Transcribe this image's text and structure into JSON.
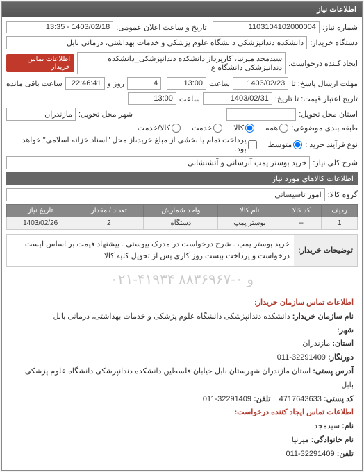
{
  "panel_title": "اطلاعات نیاز",
  "top": {
    "req_no_label": "شماره نیاز:",
    "req_no": "1103104102000004",
    "ann_time_label": "تاریخ و ساعت اعلان عمومی:",
    "ann_time": "1403/02/18 - 13:35",
    "buyer_label": "دستگاه خریدار:",
    "buyer": "دانشکده دندانپزشکی دانشگاه علوم پزشکی و خدمات بهداشتی، درمانی بابل",
    "creator_label": "ایجاد کننده درخواست:",
    "creator": "سیدمجد میرنیا، کارپرداز دانشکده دندانپزشکی_دانشکده دندانپزشکی دانشگاه ع",
    "contact_badge": "اطلاعات تماس خریدار",
    "deadline_label": "مهلت ارسال پاسخ: تا",
    "deadline_date": "1403/02/23",
    "time_word": "ساعت",
    "deadline_time": "13:00",
    "day_word": "روز و",
    "remain_days": "4",
    "remain_time": "22:46:41",
    "remain_word": "ساعت باقی مانده",
    "credit_label": "تاریخ اعتبار قیمت: تا تاریخ:",
    "credit_date": "1403/02/31",
    "credit_time": "13:00",
    "loc_state_label": "استان محل تحویل:",
    "loc_city_label": "شهر محل تحویل:",
    "mazandaran": "مازندران",
    "class_label": "طبقه بندی موضوعی:",
    "class_all": "همه",
    "class_good": "کالا",
    "class_service": "خدمت",
    "class_combo": "کالا/خدمت",
    "process_label": "نوع فرآیند خرید :",
    "radio_mid": "متوسط",
    "process_note": "پرداخت تمام یا بخشی از مبلغ خرید،از محل \"اسناد خزانه اسلامی\" خواهد بود.",
    "subject_label": "شرح کلی نیاز:",
    "subject": "خرید بوستر پمپ آبرسانی و آتشنشانی"
  },
  "goods_header": "اطلاعات کالاهای مورد نیاز",
  "group_label": "گروه کالا:",
  "group_value": "امور تاسیساتی",
  "table": {
    "cols": [
      "ردیف",
      "کد کالا",
      "نام کالا",
      "واحد شمارش",
      "تعداد / مقدار",
      "تاریخ نیاز"
    ],
    "row": [
      "1",
      "--",
      "بوستر پمپ",
      "دستگاه",
      "2",
      "1403/02/26"
    ]
  },
  "notes": {
    "label": "توضیحات خریدار:",
    "text": "خرید بوستر پمپ . شرح درخواست در مدرک پیوستی . پیشنهاد قیمت بر اساس لیست درخواست و پرداخت بیست روز کاری پس از تحویل کلیه کالا"
  },
  "watermark": "۰۲۱-۴۱۹۳۴ و ۰-۸۸۳۶۹۶۷",
  "contact": {
    "header": "اطلاعات تماس سازمان خریدار:",
    "org_label": "نام سازمان خریدار:",
    "org": "دانشکده دندانپزشکی دانشگاه علوم پزشکی و خدمات بهداشتی، درمانی بابل",
    "city_label": "شهر:",
    "state_label": "استان:",
    "state": "مازندران",
    "fax_label": "دورنگار:",
    "fax": "32291409-011",
    "address_label": "آدرس پستی:",
    "address": "استان مازندران شهرستان بابل خیابان فلسطین دانشکده دندانپزشکی دانشگاه علوم پزشکی بابل",
    "post_label": "کد پستی:",
    "post": "4717643633",
    "phone_label": "تلفن:",
    "phone": "32291409-011",
    "req_contact_header": "اطلاعات تماس ایجاد کننده درخواست:",
    "name_label": "نام:",
    "name": "سیدمجد",
    "lname_label": "نام خانوادگی:",
    "lname": "میرنیا",
    "tel_label": "تلفن:",
    "tel": "32291409-011"
  }
}
